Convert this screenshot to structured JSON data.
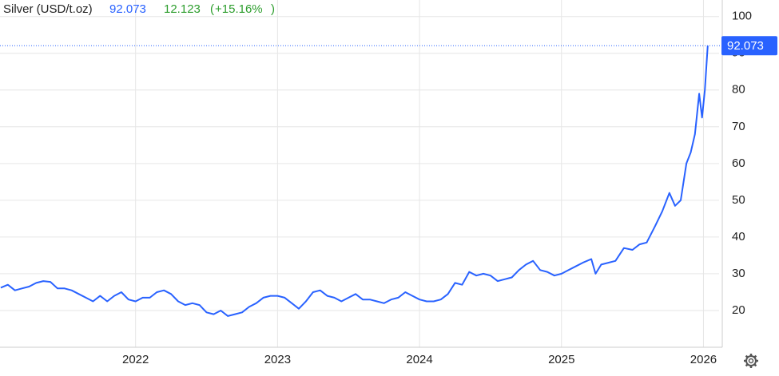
{
  "chart_data": {
    "type": "line",
    "title": "Silver (USD/t.oz)",
    "price": 92.073,
    "change": 12.123,
    "change_pct": "+15.16%",
    "color": "#2962ff",
    "grid": true,
    "x": [
      2021.05,
      2021.1,
      2021.15,
      2021.2,
      2021.25,
      2021.3,
      2021.35,
      2021.4,
      2021.45,
      2021.5,
      2021.55,
      2021.6,
      2021.65,
      2021.7,
      2021.75,
      2021.8,
      2021.85,
      2021.9,
      2021.95,
      2022.0,
      2022.05,
      2022.1,
      2022.15,
      2022.2,
      2022.25,
      2022.3,
      2022.35,
      2022.4,
      2022.45,
      2022.5,
      2022.55,
      2022.6,
      2022.65,
      2022.7,
      2022.75,
      2022.8,
      2022.85,
      2022.9,
      2022.95,
      2023.0,
      2023.05,
      2023.1,
      2023.15,
      2023.2,
      2023.25,
      2023.3,
      2023.35,
      2023.4,
      2023.45,
      2023.5,
      2023.55,
      2023.6,
      2023.65,
      2023.7,
      2023.75,
      2023.8,
      2023.85,
      2023.9,
      2023.95,
      2024.0,
      2024.05,
      2024.1,
      2024.15,
      2024.2,
      2024.25,
      2024.3,
      2024.35,
      2024.4,
      2024.45,
      2024.5,
      2024.55,
      2024.6,
      2024.65,
      2024.7,
      2024.75,
      2024.8,
      2024.85,
      2024.9,
      2024.95,
      2025.0,
      2025.05,
      2025.1,
      2025.15,
      2025.21,
      2025.24,
      2025.28,
      2025.33,
      2025.38,
      2025.44,
      2025.5,
      2025.55,
      2025.6,
      2025.66,
      2025.71,
      2025.76,
      2025.8,
      2025.84,
      2025.88,
      2025.91,
      2025.94,
      2025.97,
      2025.99,
      2026.01,
      2026.03
    ],
    "values": [
      26.2,
      27,
      25.5,
      26,
      26.5,
      27.5,
      28,
      27.8,
      26,
      26,
      25.5,
      24.5,
      23.5,
      22.5,
      24,
      22.5,
      24,
      25,
      23,
      22.5,
      23.5,
      23.5,
      25,
      25.5,
      24.5,
      22.5,
      21.5,
      22,
      21.5,
      19.5,
      19,
      20,
      18.5,
      19,
      19.5,
      21,
      22,
      23.5,
      24,
      24,
      23.5,
      22,
      20.5,
      22.5,
      25,
      25.5,
      24,
      23.5,
      22.5,
      23.5,
      24.5,
      23,
      23,
      22.5,
      22,
      23,
      23.5,
      25,
      24,
      23,
      22.5,
      22.5,
      23,
      24.5,
      27.5,
      27,
      30.5,
      29.5,
      30,
      29.5,
      28,
      28.5,
      29,
      31,
      32.5,
      33.5,
      31,
      30.5,
      29.5,
      30,
      31,
      32,
      33,
      34,
      30,
      32.5,
      33,
      33.5,
      37,
      36.5,
      38,
      38.5,
      43,
      47,
      52,
      48.5,
      50,
      60,
      63,
      68,
      79,
      72.5,
      80,
      92.073
    ],
    "xlim": [
      2021.045,
      2026.11
    ],
    "xticks": [
      2022,
      2023,
      2024,
      2025,
      2026
    ],
    "ylim": [
      10,
      104.5
    ],
    "yticks": [
      20,
      30,
      40,
      50,
      60,
      70,
      80,
      90,
      100
    ]
  }
}
